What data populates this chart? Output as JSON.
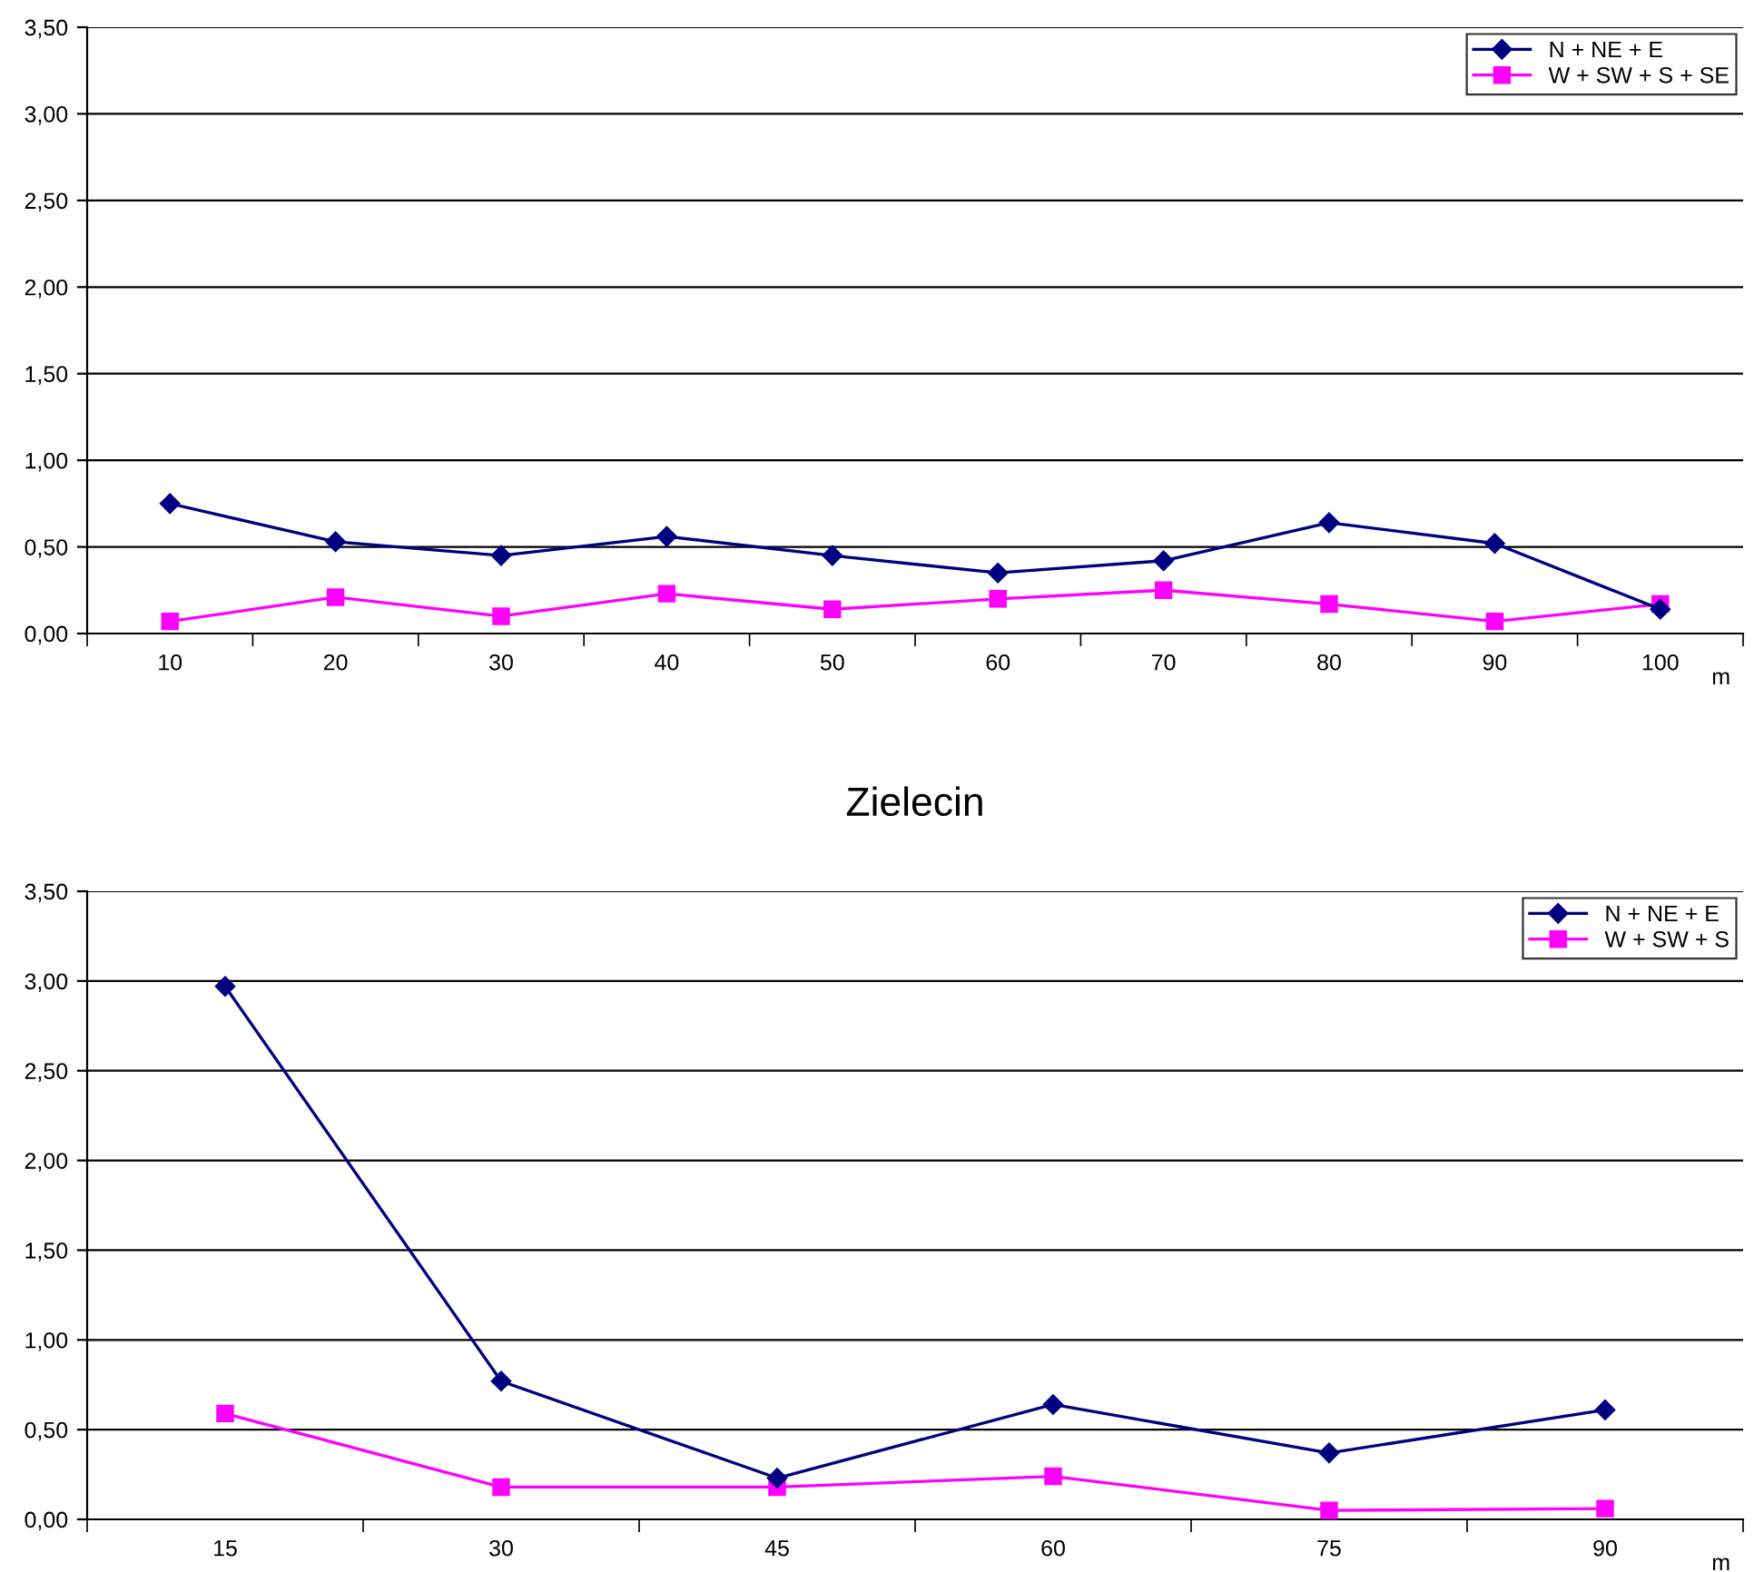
{
  "chart_data": [
    {
      "type": "line",
      "categories": [
        "10",
        "20",
        "30",
        "40",
        "50",
        "60",
        "70",
        "80",
        "90",
        "100"
      ],
      "series": [
        {
          "name": "N + NE + E",
          "color": "#000080",
          "marker": "diamond",
          "values": [
            0.75,
            0.53,
            0.45,
            0.56,
            0.45,
            0.35,
            0.42,
            0.64,
            0.52,
            0.14
          ]
        },
        {
          "name": "W + SW + S + SE",
          "color": "#ff00ff",
          "marker": "square",
          "values": [
            0.07,
            0.21,
            0.1,
            0.23,
            0.14,
            0.2,
            0.25,
            0.17,
            0.07,
            0.17
          ]
        }
      ],
      "ylim": [
        0,
        3.5
      ],
      "yticks": [
        {
          "value": 0,
          "label": "0,00"
        },
        {
          "value": 0.5,
          "label": "0,50"
        },
        {
          "value": 1,
          "label": "1,00"
        },
        {
          "value": 1.5,
          "label": "1,50"
        },
        {
          "value": 2,
          "label": "2,00"
        },
        {
          "value": 2.5,
          "label": "2,50"
        },
        {
          "value": 3,
          "label": "3,00"
        },
        {
          "value": 3.5,
          "label": "3,50"
        }
      ],
      "grid": "y",
      "legend": "top right",
      "line_style": "solid",
      "annotations": [
        "m"
      ]
    },
    {
      "type": "line",
      "title": "Zielecin",
      "categories": [
        "15",
        "30",
        "45",
        "60",
        "75",
        "90"
      ],
      "series": [
        {
          "name": "N + NE + E",
          "color": "#000080",
          "marker": "diamond",
          "values": [
            2.97,
            0.77,
            0.23,
            0.64,
            0.37,
            0.61
          ]
        },
        {
          "name": "W + SW + S",
          "color": "#ff00ff",
          "marker": "square",
          "values": [
            0.59,
            0.18,
            0.18,
            0.24,
            0.05,
            0.06
          ]
        }
      ],
      "ylim": [
        0,
        3.5
      ],
      "yticks": [
        {
          "value": 0,
          "label": "0,00"
        },
        {
          "value": 0.5,
          "label": "0,50"
        },
        {
          "value": 1,
          "label": "1,00"
        },
        {
          "value": 1.5,
          "label": "1,50"
        },
        {
          "value": 2,
          "label": "2,00"
        },
        {
          "value": 2.5,
          "label": "2,50"
        },
        {
          "value": 3,
          "label": "3,00"
        },
        {
          "value": 3.5,
          "label": "3,50"
        }
      ],
      "grid": "y",
      "legend": "top right",
      "line_style": "solid",
      "annotations": [
        "m"
      ]
    }
  ]
}
